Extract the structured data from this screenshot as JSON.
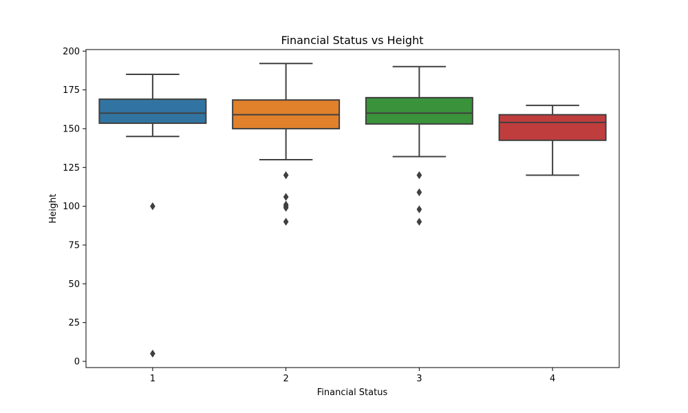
{
  "chart_data": {
    "type": "box",
    "title": "Financial Status vs Height",
    "xlabel": "Financial Status",
    "ylabel": "Height",
    "ylim": [
      -4,
      201
    ],
    "yticks": [
      0,
      25,
      50,
      75,
      100,
      125,
      150,
      175,
      200
    ],
    "categories": [
      "1",
      "2",
      "3",
      "4"
    ],
    "grid": false,
    "boxes": [
      {
        "category": "1",
        "color": "#3274a1",
        "whisker_low": 145,
        "q1": 153.5,
        "median": 160,
        "q3": 169,
        "whisker_high": 185,
        "outliers": [
          100,
          5
        ]
      },
      {
        "category": "2",
        "color": "#e1812c",
        "whisker_low": 130,
        "q1": 150,
        "median": 159,
        "q3": 168.5,
        "whisker_high": 192,
        "outliers": [
          120,
          106,
          101,
          100,
          99,
          90
        ]
      },
      {
        "category": "3",
        "color": "#3a923a",
        "whisker_low": 132,
        "q1": 153,
        "median": 160,
        "q3": 170,
        "whisker_high": 190,
        "outliers": [
          120,
          109,
          98,
          90
        ]
      },
      {
        "category": "4",
        "color": "#c03d3e",
        "whisker_low": 120,
        "q1": 142.5,
        "median": 154,
        "q3": 159,
        "whisker_high": 165,
        "outliers": []
      }
    ]
  }
}
